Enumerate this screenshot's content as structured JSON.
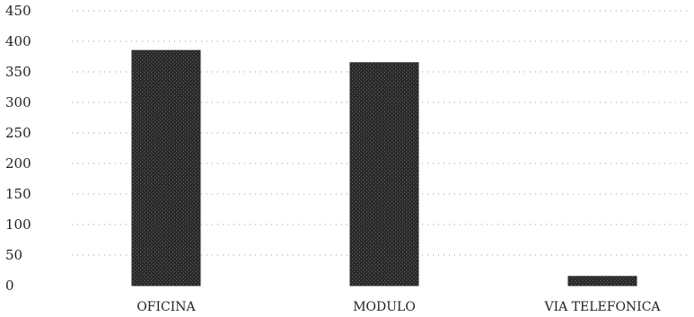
{
  "chart_data": {
    "type": "bar",
    "categories": [
      "OFICINA",
      "MODULO",
      "VIA TELEFONICA"
    ],
    "values": [
      385,
      365,
      15
    ],
    "title": "",
    "xlabel": "",
    "ylabel": "",
    "ylim": [
      0,
      450
    ],
    "yticks": [
      "0",
      "50",
      "100",
      "150",
      "200",
      "250",
      "300",
      "350",
      "400",
      "450"
    ],
    "grid": true,
    "bar_color": "#2b2b2b",
    "legend": "none"
  }
}
